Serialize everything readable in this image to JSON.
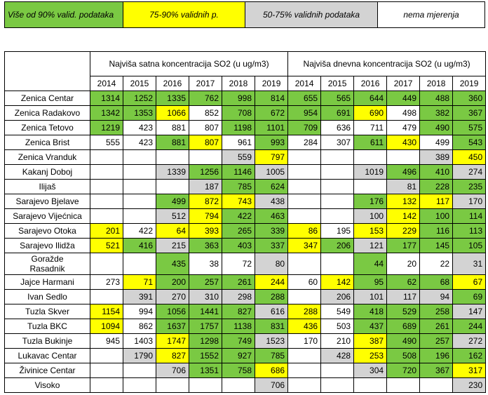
{
  "legend": {
    "green": "Više od 90% valid. podataka",
    "yellow": "75-90% validnih p.",
    "grey": "50-75% validnih podataka",
    "white": "nema mjerenja"
  },
  "colors": {
    "green": "#7ac943",
    "yellow": "#ffff00",
    "grey": "#d3d3d3",
    "white": "#ffffff"
  },
  "header": {
    "hourly": "Najviša satna koncentracija SO2 (u ug/m3)",
    "daily": "Najviša dnevna koncentracija  SO2 (u ug/m3)",
    "years": [
      "2014",
      "2015",
      "2016",
      "2017",
      "2018",
      "2019"
    ]
  },
  "rows": [
    {
      "name": "Zenica Centar",
      "cells": [
        [
          "1314",
          "g"
        ],
        [
          "1252",
          "g"
        ],
        [
          "1335",
          "g"
        ],
        [
          "762",
          "g"
        ],
        [
          "998",
          "g"
        ],
        [
          "814",
          "g"
        ],
        [
          "655",
          "g"
        ],
        [
          "565",
          "g"
        ],
        [
          "644",
          "g"
        ],
        [
          "449",
          "g"
        ],
        [
          "488",
          "g"
        ],
        [
          "360",
          "g"
        ]
      ]
    },
    {
      "name": "Zenica Radakovo",
      "cells": [
        [
          "1342",
          "g"
        ],
        [
          "1353",
          "g"
        ],
        [
          "1066",
          "y"
        ],
        [
          "852",
          "w"
        ],
        [
          "708",
          "g"
        ],
        [
          "672",
          "g"
        ],
        [
          "954",
          "g"
        ],
        [
          "691",
          "g"
        ],
        [
          "690",
          "y"
        ],
        [
          "498",
          "w"
        ],
        [
          "382",
          "g"
        ],
        [
          "367",
          "g"
        ]
      ]
    },
    {
      "name": "Zenica Tetovo",
      "cells": [
        [
          "1219",
          "g"
        ],
        [
          "423",
          "w"
        ],
        [
          "881",
          "w"
        ],
        [
          "807",
          "w"
        ],
        [
          "1198",
          "g"
        ],
        [
          "1101",
          "g"
        ],
        [
          "709",
          "g"
        ],
        [
          "636",
          "w"
        ],
        [
          "711",
          "w"
        ],
        [
          "479",
          "w"
        ],
        [
          "490",
          "g"
        ],
        [
          "575",
          "g"
        ]
      ]
    },
    {
      "name": "Zenica Brist",
      "cells": [
        [
          "555",
          "w"
        ],
        [
          "423",
          "w"
        ],
        [
          "881",
          "g"
        ],
        [
          "807",
          "y"
        ],
        [
          "961",
          "w"
        ],
        [
          "993",
          "g"
        ],
        [
          "284",
          "w"
        ],
        [
          "307",
          "w"
        ],
        [
          "611",
          "g"
        ],
        [
          "430",
          "y"
        ],
        [
          "499",
          "w"
        ],
        [
          "543",
          "g"
        ]
      ]
    },
    {
      "name": "Zenica Vranduk",
      "cells": [
        [
          "",
          "w"
        ],
        [
          "",
          "w"
        ],
        [
          "",
          "w"
        ],
        [
          "",
          "w"
        ],
        [
          "559",
          "s"
        ],
        [
          "797",
          "y"
        ],
        [
          "",
          "w"
        ],
        [
          "",
          "w"
        ],
        [
          "",
          "w"
        ],
        [
          "",
          "w"
        ],
        [
          "389",
          "s"
        ],
        [
          "450",
          "y"
        ]
      ]
    },
    {
      "name": "Kakanj Doboj",
      "cells": [
        [
          "",
          "w"
        ],
        [
          "",
          "w"
        ],
        [
          "1339",
          "s"
        ],
        [
          "1256",
          "g"
        ],
        [
          "1146",
          "g"
        ],
        [
          "1005",
          "s"
        ],
        [
          "",
          "w"
        ],
        [
          "",
          "w"
        ],
        [
          "1019",
          "s"
        ],
        [
          "496",
          "g"
        ],
        [
          "410",
          "g"
        ],
        [
          "274",
          "s"
        ]
      ]
    },
    {
      "name": "Ilijaš",
      "cells": [
        [
          "",
          "w"
        ],
        [
          "",
          "w"
        ],
        [
          "",
          "w"
        ],
        [
          "187",
          "s"
        ],
        [
          "785",
          "g"
        ],
        [
          "624",
          "g"
        ],
        [
          "",
          "w"
        ],
        [
          "",
          "w"
        ],
        [
          "",
          "w"
        ],
        [
          "81",
          "s"
        ],
        [
          "228",
          "g"
        ],
        [
          "235",
          "g"
        ]
      ]
    },
    {
      "name": "Sarajevo Bjelave",
      "cells": [
        [
          "",
          "w"
        ],
        [
          "",
          "w"
        ],
        [
          "499",
          "g"
        ],
        [
          "872",
          "y"
        ],
        [
          "743",
          "y"
        ],
        [
          "438",
          "s"
        ],
        [
          "",
          "w"
        ],
        [
          "",
          "w"
        ],
        [
          "176",
          "g"
        ],
        [
          "132",
          "y"
        ],
        [
          "117",
          "y"
        ],
        [
          "170",
          "s"
        ]
      ]
    },
    {
      "name": "Sarajevo Vijećnica",
      "cells": [
        [
          "",
          "w"
        ],
        [
          "",
          "w"
        ],
        [
          "512",
          "s"
        ],
        [
          "794",
          "y"
        ],
        [
          "422",
          "g"
        ],
        [
          "463",
          "g"
        ],
        [
          "",
          "w"
        ],
        [
          "",
          "w"
        ],
        [
          "100",
          "s"
        ],
        [
          "142",
          "y"
        ],
        [
          "100",
          "g"
        ],
        [
          "114",
          "g"
        ]
      ]
    },
    {
      "name": "Sarajevo Otoka",
      "cells": [
        [
          "201",
          "y"
        ],
        [
          "422",
          "w"
        ],
        [
          "64",
          "y"
        ],
        [
          "393",
          "y"
        ],
        [
          "265",
          "g"
        ],
        [
          "339",
          "g"
        ],
        [
          "86",
          "y"
        ],
        [
          "195",
          "w"
        ],
        [
          "153",
          "y"
        ],
        [
          "229",
          "y"
        ],
        [
          "116",
          "g"
        ],
        [
          "113",
          "g"
        ]
      ]
    },
    {
      "name": "Sarajevo Ilidža",
      "cells": [
        [
          "521",
          "y"
        ],
        [
          "416",
          "g"
        ],
        [
          "215",
          "s"
        ],
        [
          "363",
          "g"
        ],
        [
          "403",
          "g"
        ],
        [
          "337",
          "g"
        ],
        [
          "347",
          "y"
        ],
        [
          "206",
          "g"
        ],
        [
          "121",
          "s"
        ],
        [
          "177",
          "g"
        ],
        [
          "145",
          "g"
        ],
        [
          "105",
          "g"
        ]
      ]
    },
    {
      "name": "Goražde\nRasadnik",
      "tall": true,
      "cells": [
        [
          "",
          "w"
        ],
        [
          "",
          "w"
        ],
        [
          "435",
          "g"
        ],
        [
          "38",
          "w"
        ],
        [
          "72",
          "w"
        ],
        [
          "80",
          "s"
        ],
        [
          "",
          "w"
        ],
        [
          "",
          "w"
        ],
        [
          "44",
          "g"
        ],
        [
          "20",
          "w"
        ],
        [
          "22",
          "w"
        ],
        [
          "31",
          "s"
        ]
      ]
    },
    {
      "name": "Jajce Harmani",
      "cells": [
        [
          "273",
          "w"
        ],
        [
          "71",
          "y"
        ],
        [
          "200",
          "g"
        ],
        [
          "257",
          "g"
        ],
        [
          "261",
          "g"
        ],
        [
          "244",
          "y"
        ],
        [
          "60",
          "w"
        ],
        [
          "142",
          "y"
        ],
        [
          "95",
          "g"
        ],
        [
          "62",
          "g"
        ],
        [
          "68",
          "g"
        ],
        [
          "67",
          "y"
        ]
      ]
    },
    {
      "name": "Ivan Sedlo",
      "cells": [
        [
          "",
          "w"
        ],
        [
          "391",
          "s"
        ],
        [
          "270",
          "s"
        ],
        [
          "310",
          "s"
        ],
        [
          "298",
          "s"
        ],
        [
          "288",
          "g"
        ],
        [
          "",
          "w"
        ],
        [
          "206",
          "s"
        ],
        [
          "101",
          "s"
        ],
        [
          "117",
          "s"
        ],
        [
          "94",
          "s"
        ],
        [
          "69",
          "g"
        ]
      ]
    },
    {
      "name": "Tuzla Skver",
      "cells": [
        [
          "1154",
          "y"
        ],
        [
          "994",
          "w"
        ],
        [
          "1056",
          "g"
        ],
        [
          "1441",
          "g"
        ],
        [
          "827",
          "g"
        ],
        [
          "616",
          "s"
        ],
        [
          "288",
          "y"
        ],
        [
          "549",
          "w"
        ],
        [
          "418",
          "g"
        ],
        [
          "529",
          "g"
        ],
        [
          "258",
          "g"
        ],
        [
          "147",
          "s"
        ]
      ]
    },
    {
      "name": "Tuzla BKC",
      "cells": [
        [
          "1094",
          "y"
        ],
        [
          "862",
          "w"
        ],
        [
          "1637",
          "g"
        ],
        [
          "1757",
          "g"
        ],
        [
          "1138",
          "g"
        ],
        [
          "831",
          "g"
        ],
        [
          "436",
          "y"
        ],
        [
          "503",
          "w"
        ],
        [
          "437",
          "g"
        ],
        [
          "689",
          "g"
        ],
        [
          "261",
          "g"
        ],
        [
          "244",
          "g"
        ]
      ]
    },
    {
      "name": "Tuzla Bukinje",
      "cells": [
        [
          "945",
          "w"
        ],
        [
          "1403",
          "w"
        ],
        [
          "1747",
          "y"
        ],
        [
          "1298",
          "g"
        ],
        [
          "749",
          "g"
        ],
        [
          "1523",
          "s"
        ],
        [
          "170",
          "w"
        ],
        [
          "210",
          "w"
        ],
        [
          "387",
          "y"
        ],
        [
          "490",
          "g"
        ],
        [
          "257",
          "g"
        ],
        [
          "272",
          "s"
        ]
      ]
    },
    {
      "name": "Lukavac Centar",
      "cells": [
        [
          "",
          "w"
        ],
        [
          "1790",
          "s"
        ],
        [
          "827",
          "y"
        ],
        [
          "1552",
          "g"
        ],
        [
          "927",
          "g"
        ],
        [
          "785",
          "g"
        ],
        [
          "",
          "w"
        ],
        [
          "428",
          "s"
        ],
        [
          "253",
          "y"
        ],
        [
          "508",
          "g"
        ],
        [
          "196",
          "g"
        ],
        [
          "162",
          "g"
        ]
      ]
    },
    {
      "name": "Živinice Centar",
      "cells": [
        [
          "",
          "w"
        ],
        [
          "",
          "w"
        ],
        [
          "706",
          "s"
        ],
        [
          "1351",
          "g"
        ],
        [
          "758",
          "g"
        ],
        [
          "686",
          "y"
        ],
        [
          "",
          "w"
        ],
        [
          "",
          "w"
        ],
        [
          "304",
          "s"
        ],
        [
          "720",
          "g"
        ],
        [
          "367",
          "g"
        ],
        [
          "317",
          "y"
        ]
      ]
    },
    {
      "name": "Visoko",
      "cells": [
        [
          "",
          "w"
        ],
        [
          "",
          "w"
        ],
        [
          "",
          "w"
        ],
        [
          "",
          "w"
        ],
        [
          "",
          "w"
        ],
        [
          "706",
          "s"
        ],
        [
          "",
          "w"
        ],
        [
          "",
          "w"
        ],
        [
          "",
          "w"
        ],
        [
          "",
          "w"
        ],
        [
          "",
          "w"
        ],
        [
          "230",
          "s"
        ]
      ]
    }
  ]
}
